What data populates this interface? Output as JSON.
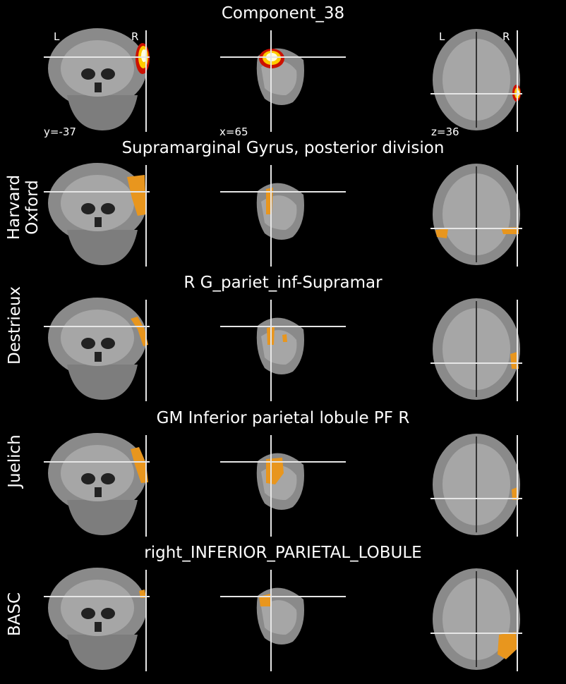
{
  "header": {
    "title": "Component_38"
  },
  "orientation": {
    "left": "L",
    "right": "R"
  },
  "coords": {
    "y": "y=-37",
    "x": "x=65",
    "z": "z=36"
  },
  "rows": [
    {
      "label": "",
      "title": "Component_38",
      "overlay": "hot"
    },
    {
      "label": "Harvard\nOxford",
      "title": "Supramarginal Gyrus, posterior division",
      "overlay": "atlas"
    },
    {
      "label": "Destrieux",
      "title": "R G_pariet_inf-Supramar",
      "overlay": "atlas"
    },
    {
      "label": "Juelich",
      "title": "GM Inferior parietal lobule PF R",
      "overlay": "atlas"
    },
    {
      "label": "BASC",
      "title": "right_INFERIOR_PARIETAL_LOBULE",
      "overlay": "atlas"
    }
  ],
  "colors": {
    "background": "#000000",
    "atlas_overlay": "#e8961e",
    "hot_core": "#ffffe0",
    "hot_mid": "#ffcc00",
    "hot_edge": "#cc1100",
    "crosshair": "#e6e6e6"
  }
}
